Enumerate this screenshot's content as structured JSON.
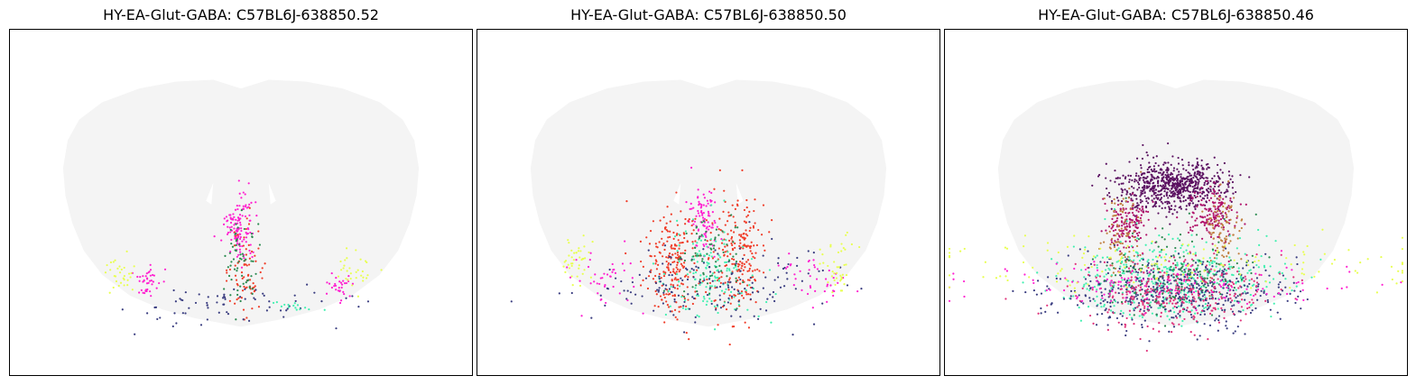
{
  "chart_data": [
    {
      "type": "scatter",
      "title": "HY-EA-Glut-GABA: C57BL6J-638850.52",
      "xlabel": "",
      "ylabel": "",
      "grid": false,
      "legend": "none",
      "x_range": [
        0,
        1
      ],
      "y_range": [
        0,
        1
      ],
      "background_color": "#f4f4f4",
      "series_colors": [
        "#ff20d0",
        "#f03c28",
        "#3a3d80",
        "#2a8a50",
        "#e8ff50",
        "#40f0b0",
        "#c08040"
      ],
      "clusters": [
        {
          "color": "#ff20d0",
          "cx": 0.495,
          "cy": 0.58,
          "sx": 0.015,
          "sy": 0.05,
          "n": 120
        },
        {
          "color": "#f03c28",
          "cx": 0.51,
          "cy": 0.7,
          "sx": 0.02,
          "sy": 0.06,
          "n": 70
        },
        {
          "color": "#2a8a50",
          "cx": 0.5,
          "cy": 0.66,
          "sx": 0.02,
          "sy": 0.06,
          "n": 60
        },
        {
          "color": "#3a3d80",
          "cx": 0.5,
          "cy": 0.8,
          "sx": 0.12,
          "sy": 0.03,
          "n": 70
        },
        {
          "color": "#ff20d0",
          "cx": 0.3,
          "cy": 0.73,
          "sx": 0.012,
          "sy": 0.02,
          "n": 40
        },
        {
          "color": "#ff20d0",
          "cx": 0.71,
          "cy": 0.74,
          "sx": 0.015,
          "sy": 0.02,
          "n": 30
        },
        {
          "color": "#e8ff50",
          "cx": 0.24,
          "cy": 0.7,
          "sx": 0.02,
          "sy": 0.03,
          "n": 30
        },
        {
          "color": "#e8ff50",
          "cx": 0.75,
          "cy": 0.7,
          "sx": 0.02,
          "sy": 0.03,
          "n": 30
        },
        {
          "color": "#40f0b0",
          "cx": 0.6,
          "cy": 0.8,
          "sx": 0.03,
          "sy": 0.01,
          "n": 15
        }
      ]
    },
    {
      "type": "scatter",
      "title": "HY-EA-Glut-GABA: C57BL6J-638850.50",
      "xlabel": "",
      "ylabel": "",
      "grid": false,
      "legend": "none",
      "x_range": [
        0,
        1
      ],
      "y_range": [
        0,
        1
      ],
      "background_color": "#f4f4f4",
      "series_colors": [
        "#ff20d0",
        "#f03c28",
        "#3a3d80",
        "#2a8a50",
        "#e8ff50",
        "#40f0b0"
      ],
      "clusters": [
        {
          "color": "#ff20d0",
          "cx": 0.49,
          "cy": 0.55,
          "sx": 0.015,
          "sy": 0.05,
          "n": 90
        },
        {
          "color": "#f03c28",
          "cx": 0.42,
          "cy": 0.68,
          "sx": 0.03,
          "sy": 0.08,
          "n": 220
        },
        {
          "color": "#f03c28",
          "cx": 0.56,
          "cy": 0.66,
          "sx": 0.03,
          "sy": 0.08,
          "n": 220
        },
        {
          "color": "#40f0b0",
          "cx": 0.5,
          "cy": 0.7,
          "sx": 0.05,
          "sy": 0.07,
          "n": 150
        },
        {
          "color": "#3a3d80",
          "cx": 0.5,
          "cy": 0.74,
          "sx": 0.13,
          "sy": 0.05,
          "n": 170
        },
        {
          "color": "#2a8a50",
          "cx": 0.5,
          "cy": 0.65,
          "sx": 0.04,
          "sy": 0.07,
          "n": 70
        },
        {
          "color": "#ff20d0",
          "cx": 0.28,
          "cy": 0.72,
          "sx": 0.04,
          "sy": 0.04,
          "n": 40
        },
        {
          "color": "#ff20d0",
          "cx": 0.73,
          "cy": 0.72,
          "sx": 0.04,
          "sy": 0.04,
          "n": 40
        },
        {
          "color": "#e8ff50",
          "cx": 0.22,
          "cy": 0.66,
          "sx": 0.02,
          "sy": 0.04,
          "n": 40
        },
        {
          "color": "#e8ff50",
          "cx": 0.78,
          "cy": 0.68,
          "sx": 0.02,
          "sy": 0.04,
          "n": 40
        }
      ]
    },
    {
      "type": "scatter",
      "title": "HY-EA-Glut-GABA: C57BL6J-638850.46",
      "xlabel": "",
      "ylabel": "",
      "grid": false,
      "legend": "none",
      "x_range": [
        0,
        1
      ],
      "y_range": [
        0,
        1
      ],
      "background_color": "#f4f4f4",
      "series_colors": [
        "#5a1060",
        "#b0106a",
        "#40f0b0",
        "#3a3d80",
        "#2a8a50",
        "#e0307a",
        "#c08040",
        "#e8ff50",
        "#ff20d0"
      ],
      "clusters": [
        {
          "color": "#5a1060",
          "cx": 0.49,
          "cy": 0.45,
          "sx": 0.06,
          "sy": 0.035,
          "n": 700
        },
        {
          "color": "#b0106a",
          "cx": 0.4,
          "cy": 0.56,
          "sx": 0.025,
          "sy": 0.04,
          "n": 150
        },
        {
          "color": "#b0106a",
          "cx": 0.58,
          "cy": 0.54,
          "sx": 0.025,
          "sy": 0.04,
          "n": 150
        },
        {
          "color": "#c08040",
          "cx": 0.38,
          "cy": 0.6,
          "sx": 0.02,
          "sy": 0.06,
          "n": 90
        },
        {
          "color": "#c08040",
          "cx": 0.6,
          "cy": 0.58,
          "sx": 0.02,
          "sy": 0.06,
          "n": 90
        },
        {
          "color": "#40f0b0",
          "cx": 0.5,
          "cy": 0.72,
          "sx": 0.11,
          "sy": 0.06,
          "n": 450
        },
        {
          "color": "#3a3d80",
          "cx": 0.5,
          "cy": 0.76,
          "sx": 0.12,
          "sy": 0.05,
          "n": 500
        },
        {
          "color": "#e0307a",
          "cx": 0.5,
          "cy": 0.76,
          "sx": 0.1,
          "sy": 0.05,
          "n": 350
        },
        {
          "color": "#2a8a50",
          "cx": 0.5,
          "cy": 0.7,
          "sx": 0.08,
          "sy": 0.06,
          "n": 150
        },
        {
          "color": "#ff20d0",
          "cx": 0.5,
          "cy": 0.74,
          "sx": 0.2,
          "sy": 0.03,
          "n": 120
        },
        {
          "color": "#e8ff50",
          "cx": 0.5,
          "cy": 0.68,
          "sx": 0.28,
          "sy": 0.04,
          "n": 140
        }
      ]
    }
  ]
}
